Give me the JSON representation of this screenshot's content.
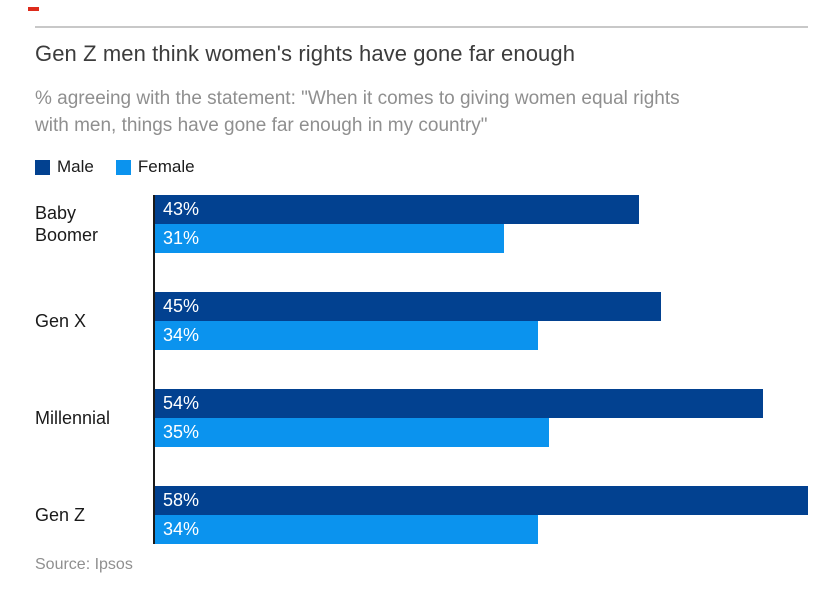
{
  "brand": {
    "accent_dash_color": "#dd2b1c"
  },
  "chart_data": {
    "type": "bar",
    "orientation": "horizontal",
    "title": "Gen Z men think women's rights have gone far enough",
    "subtitle": "% agreeing with the statement: \"When it comes to giving women equal rights with men, things have gone far enough in my country\"",
    "subtitle_lines": [
      "% agreeing with the statement: \"When it comes to giving women equal rights",
      "with men, things have gone far enough in my country\""
    ],
    "categories": [
      "Baby Boomer",
      "Gen X",
      "Millennial",
      "Gen Z"
    ],
    "series": [
      {
        "name": "Male",
        "color": "#024190",
        "values": [
          43,
          45,
          54,
          58
        ]
      },
      {
        "name": "Female",
        "color": "#0b93ee",
        "values": [
          31,
          34,
          35,
          34
        ]
      }
    ],
    "value_suffix": "%",
    "xlim": [
      0,
      60
    ],
    "grid": false,
    "legend_position": "top-left",
    "axis_line_color": "#1a1a1a"
  },
  "source": "Source: Ipsos",
  "colors": {
    "title_text": "#3c3c3c",
    "muted_text": "#8f8f8f",
    "rule": "#c8c8c8",
    "bar_value_text": "#ffffff"
  }
}
